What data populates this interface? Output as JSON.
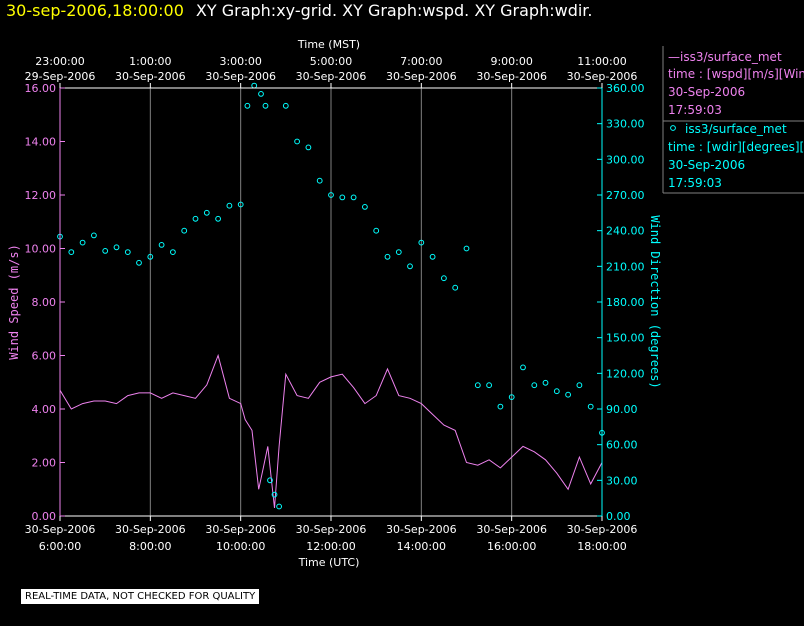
{
  "header": {
    "timestamp": "30-sep-2006,18:00:00",
    "graph_labels": "XY Graph:xy-grid.  XY Graph:wspd.  XY Graph:wdir."
  },
  "footer_note": "REAL-TIME DATA, NOT CHECKED FOR QUALITY",
  "colors": {
    "background": "#000000",
    "speed": "#ee82ee",
    "direction": "#00ffff",
    "grid": "#808080",
    "axis_text": "#ffffff",
    "timestamp": "#ffff00"
  },
  "chart_data": {
    "type": "line+scatter",
    "top_axis": {
      "title": "Time (MST)",
      "ticks": [
        {
          "hour": 0,
          "time": "23:00:00",
          "date": "29-Sep-2006"
        },
        {
          "hour": 2,
          "time": "1:00:00",
          "date": "30-Sep-2006"
        },
        {
          "hour": 4,
          "time": "3:00:00",
          "date": "30-Sep-2006"
        },
        {
          "hour": 6,
          "time": "5:00:00",
          "date": "30-Sep-2006"
        },
        {
          "hour": 8,
          "time": "7:00:00",
          "date": "30-Sep-2006"
        },
        {
          "hour": 10,
          "time": "9:00:00",
          "date": "30-Sep-2006"
        },
        {
          "hour": 12,
          "time": "11:00:00",
          "date": "30-Sep-2006"
        }
      ]
    },
    "bottom_axis": {
      "title": "Time (UTC)",
      "range_hours_from_6utc": [
        0,
        12
      ],
      "ticks": [
        {
          "hour": 0,
          "date": "30-Sep-2006",
          "time": "6:00:00"
        },
        {
          "hour": 2,
          "date": "30-Sep-2006",
          "time": "8:00:00"
        },
        {
          "hour": 4,
          "date": "30-Sep-2006",
          "time": "10:00:00"
        },
        {
          "hour": 6,
          "date": "30-Sep-2006",
          "time": "12:00:00"
        },
        {
          "hour": 8,
          "date": "30-Sep-2006",
          "time": "14:00:00"
        },
        {
          "hour": 10,
          "date": "30-Sep-2006",
          "time": "16:00:00"
        },
        {
          "hour": 12,
          "date": "30-Sep-2006",
          "time": "18:00:00"
        }
      ]
    },
    "left_axis": {
      "label": "Wind Speed (m/s)",
      "ylim": [
        0,
        16
      ],
      "ticks": [
        "0.00",
        "2.00",
        "4.00",
        "6.00",
        "8.00",
        "10.00",
        "12.00",
        "14.00",
        "16.00"
      ]
    },
    "right_axis": {
      "label": "Wind Direction (degrees)",
      "ylim": [
        0,
        360
      ],
      "ticks": [
        "0.00",
        "30.00",
        "60.00",
        "90.00",
        "120.00",
        "150.00",
        "180.00",
        "210.00",
        "240.00",
        "270.00",
        "300.00",
        "330.00",
        "360.00"
      ]
    },
    "series": [
      {
        "name": "wspd",
        "style": "line",
        "axis": "left",
        "x_hours": [
          0,
          0.25,
          0.5,
          0.75,
          1,
          1.25,
          1.5,
          1.75,
          2,
          2.25,
          2.5,
          2.75,
          3,
          3.25,
          3.5,
          3.75,
          4,
          4.1,
          4.25,
          4.4,
          4.5,
          4.6,
          4.75,
          4.85,
          5,
          5.25,
          5.5,
          5.75,
          6,
          6.25,
          6.5,
          6.75,
          7,
          7.25,
          7.5,
          7.75,
          8,
          8.25,
          8.5,
          8.75,
          9,
          9.25,
          9.5,
          9.75,
          10,
          10.25,
          10.5,
          10.75,
          11,
          11.25,
          11.5,
          11.75,
          12
        ],
        "values": [
          4.7,
          4.0,
          4.2,
          4.3,
          4.3,
          4.2,
          4.5,
          4.6,
          4.6,
          4.4,
          4.6,
          4.5,
          4.4,
          4.9,
          6.0,
          4.4,
          4.2,
          3.6,
          3.2,
          1.0,
          1.8,
          2.6,
          0.3,
          2.6,
          5.3,
          4.5,
          4.4,
          5.0,
          5.2,
          5.3,
          4.8,
          4.2,
          4.5,
          5.5,
          4.5,
          4.4,
          4.2,
          3.8,
          3.4,
          3.2,
          2.0,
          1.9,
          2.1,
          1.8,
          2.2,
          2.6,
          2.4,
          2.1,
          1.6,
          1.0,
          2.2,
          1.2,
          2.0
        ]
      },
      {
        "name": "wdir",
        "style": "markers",
        "axis": "right",
        "x_hours": [
          0,
          0.25,
          0.5,
          0.75,
          1,
          1.25,
          1.5,
          1.75,
          2,
          2.25,
          2.5,
          2.75,
          3,
          3.25,
          3.5,
          3.75,
          4,
          4.15,
          4.3,
          4.45,
          4.55,
          4.65,
          4.75,
          4.85,
          5,
          5.25,
          5.5,
          5.75,
          6,
          6.25,
          6.5,
          6.75,
          7,
          7.25,
          7.5,
          7.75,
          8,
          8.25,
          8.5,
          8.75,
          9,
          9.25,
          9.5,
          9.75,
          10,
          10.25,
          10.5,
          10.75,
          11,
          11.25,
          11.5,
          11.75,
          12
        ],
        "values": [
          235,
          222,
          230,
          236,
          223,
          226,
          222,
          213,
          218,
          228,
          222,
          240,
          250,
          255,
          250,
          261,
          262,
          345,
          362,
          355,
          345,
          30,
          18,
          8,
          345,
          315,
          310,
          282,
          270,
          268,
          268,
          260,
          240,
          218,
          222,
          210,
          230,
          218,
          200,
          192,
          225,
          110,
          110,
          92,
          100,
          125,
          110,
          112,
          105,
          102,
          110,
          92,
          70
        ]
      }
    ],
    "legend": [
      {
        "symbol": "line",
        "source": "—iss3/surface_met",
        "field": "time : [wspd][m/s][Wind Speed]",
        "date": "30-Sep-2006",
        "time": "17:59:03"
      },
      {
        "symbol": "marker",
        "source": "iss3/surface_met",
        "field": "time : [wdir][degrees][Wind Direction]",
        "date": "30-Sep-2006",
        "time": "17:59:03"
      }
    ]
  }
}
